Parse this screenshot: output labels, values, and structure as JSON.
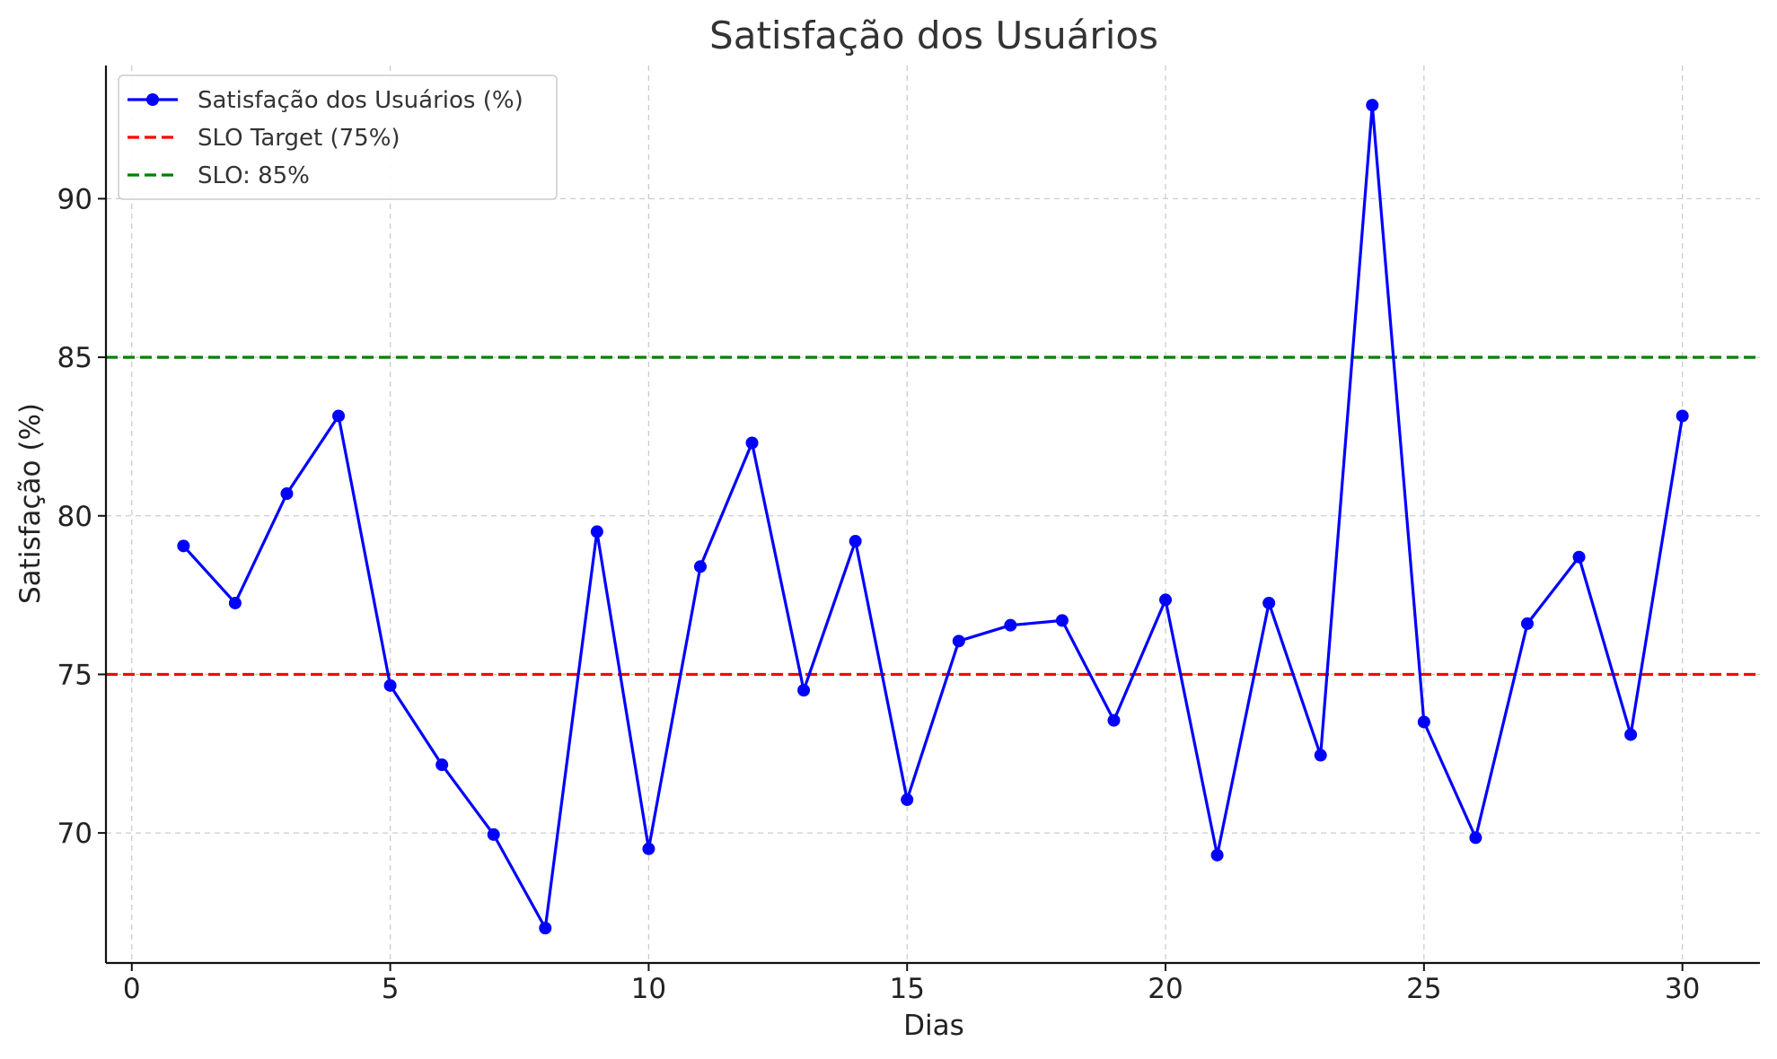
{
  "chart_data": {
    "type": "line",
    "title": "Satisfação dos Usuários",
    "xlabel": "Dias",
    "ylabel": "Satisfação (%)",
    "xlim": [
      -0.5,
      31.5
    ],
    "ylim": [
      65.9,
      94.2
    ],
    "xticks": [
      0,
      5,
      10,
      15,
      20,
      25,
      30
    ],
    "yticks": [
      70,
      75,
      80,
      85,
      90
    ],
    "grid": true,
    "legend_position": "top-left",
    "series": [
      {
        "name": "Satisfação dos Usuários (%)",
        "color": "#0000ff",
        "marker": "circle",
        "x": [
          1,
          2,
          3,
          4,
          5,
          6,
          7,
          8,
          9,
          10,
          11,
          12,
          13,
          14,
          15,
          16,
          17,
          18,
          19,
          20,
          21,
          22,
          23,
          24,
          25,
          26,
          27,
          28,
          29,
          30
        ],
        "values": [
          79.05,
          77.25,
          80.7,
          83.15,
          74.65,
          72.15,
          69.95,
          67.0,
          79.5,
          69.5,
          78.4,
          82.3,
          74.5,
          79.2,
          71.05,
          76.05,
          76.55,
          76.7,
          73.55,
          77.35,
          69.3,
          77.25,
          72.45,
          92.95,
          73.5,
          69.85,
          76.6,
          78.7,
          73.1,
          83.15
        ]
      }
    ],
    "reference_lines": [
      {
        "name": "SLO Target (75%)",
        "y": 75,
        "color": "#ff0000",
        "style": "dashed"
      },
      {
        "name": "SLO: 85%",
        "y": 85,
        "color": "#008000",
        "style": "dashed"
      }
    ]
  }
}
